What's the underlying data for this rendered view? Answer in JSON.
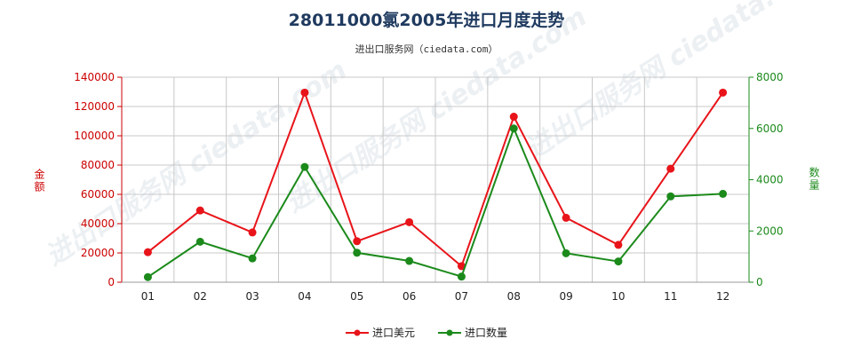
{
  "chart_data": {
    "type": "line",
    "title": "28011000氯2005年进口月度走势",
    "subtitle": "进出口服务网（ciedata.com）",
    "watermark": "进出口服务网 ciedata.com",
    "categories": [
      "01",
      "02",
      "03",
      "04",
      "05",
      "06",
      "07",
      "08",
      "09",
      "10",
      "11",
      "12"
    ],
    "y_left": {
      "label": "金额",
      "ticks": [
        "0",
        "20000",
        "40000",
        "60000",
        "80000",
        "100000",
        "120000",
        "140000"
      ],
      "range": [
        0,
        140000
      ],
      "color": "#cc0000"
    },
    "y_right": {
      "label": "数量",
      "ticks": [
        "0",
        "2000",
        "4000",
        "6000",
        "8000"
      ],
      "range": [
        0,
        8000
      ],
      "color": "#1b8a1b"
    },
    "series": [
      {
        "name": "进口美元",
        "axis": "left",
        "color": "#e8141a",
        "values": [
          20500,
          49000,
          34000,
          129500,
          28000,
          41000,
          11000,
          113000,
          44000,
          25500,
          77500,
          129500
        ]
      },
      {
        "name": "进口数量",
        "axis": "right",
        "color": "#1b8a1b",
        "values": [
          200,
          1580,
          930,
          4500,
          1150,
          830,
          220,
          6000,
          1130,
          810,
          3350,
          3450
        ]
      }
    ],
    "grid": true,
    "legend_position": "bottom"
  }
}
